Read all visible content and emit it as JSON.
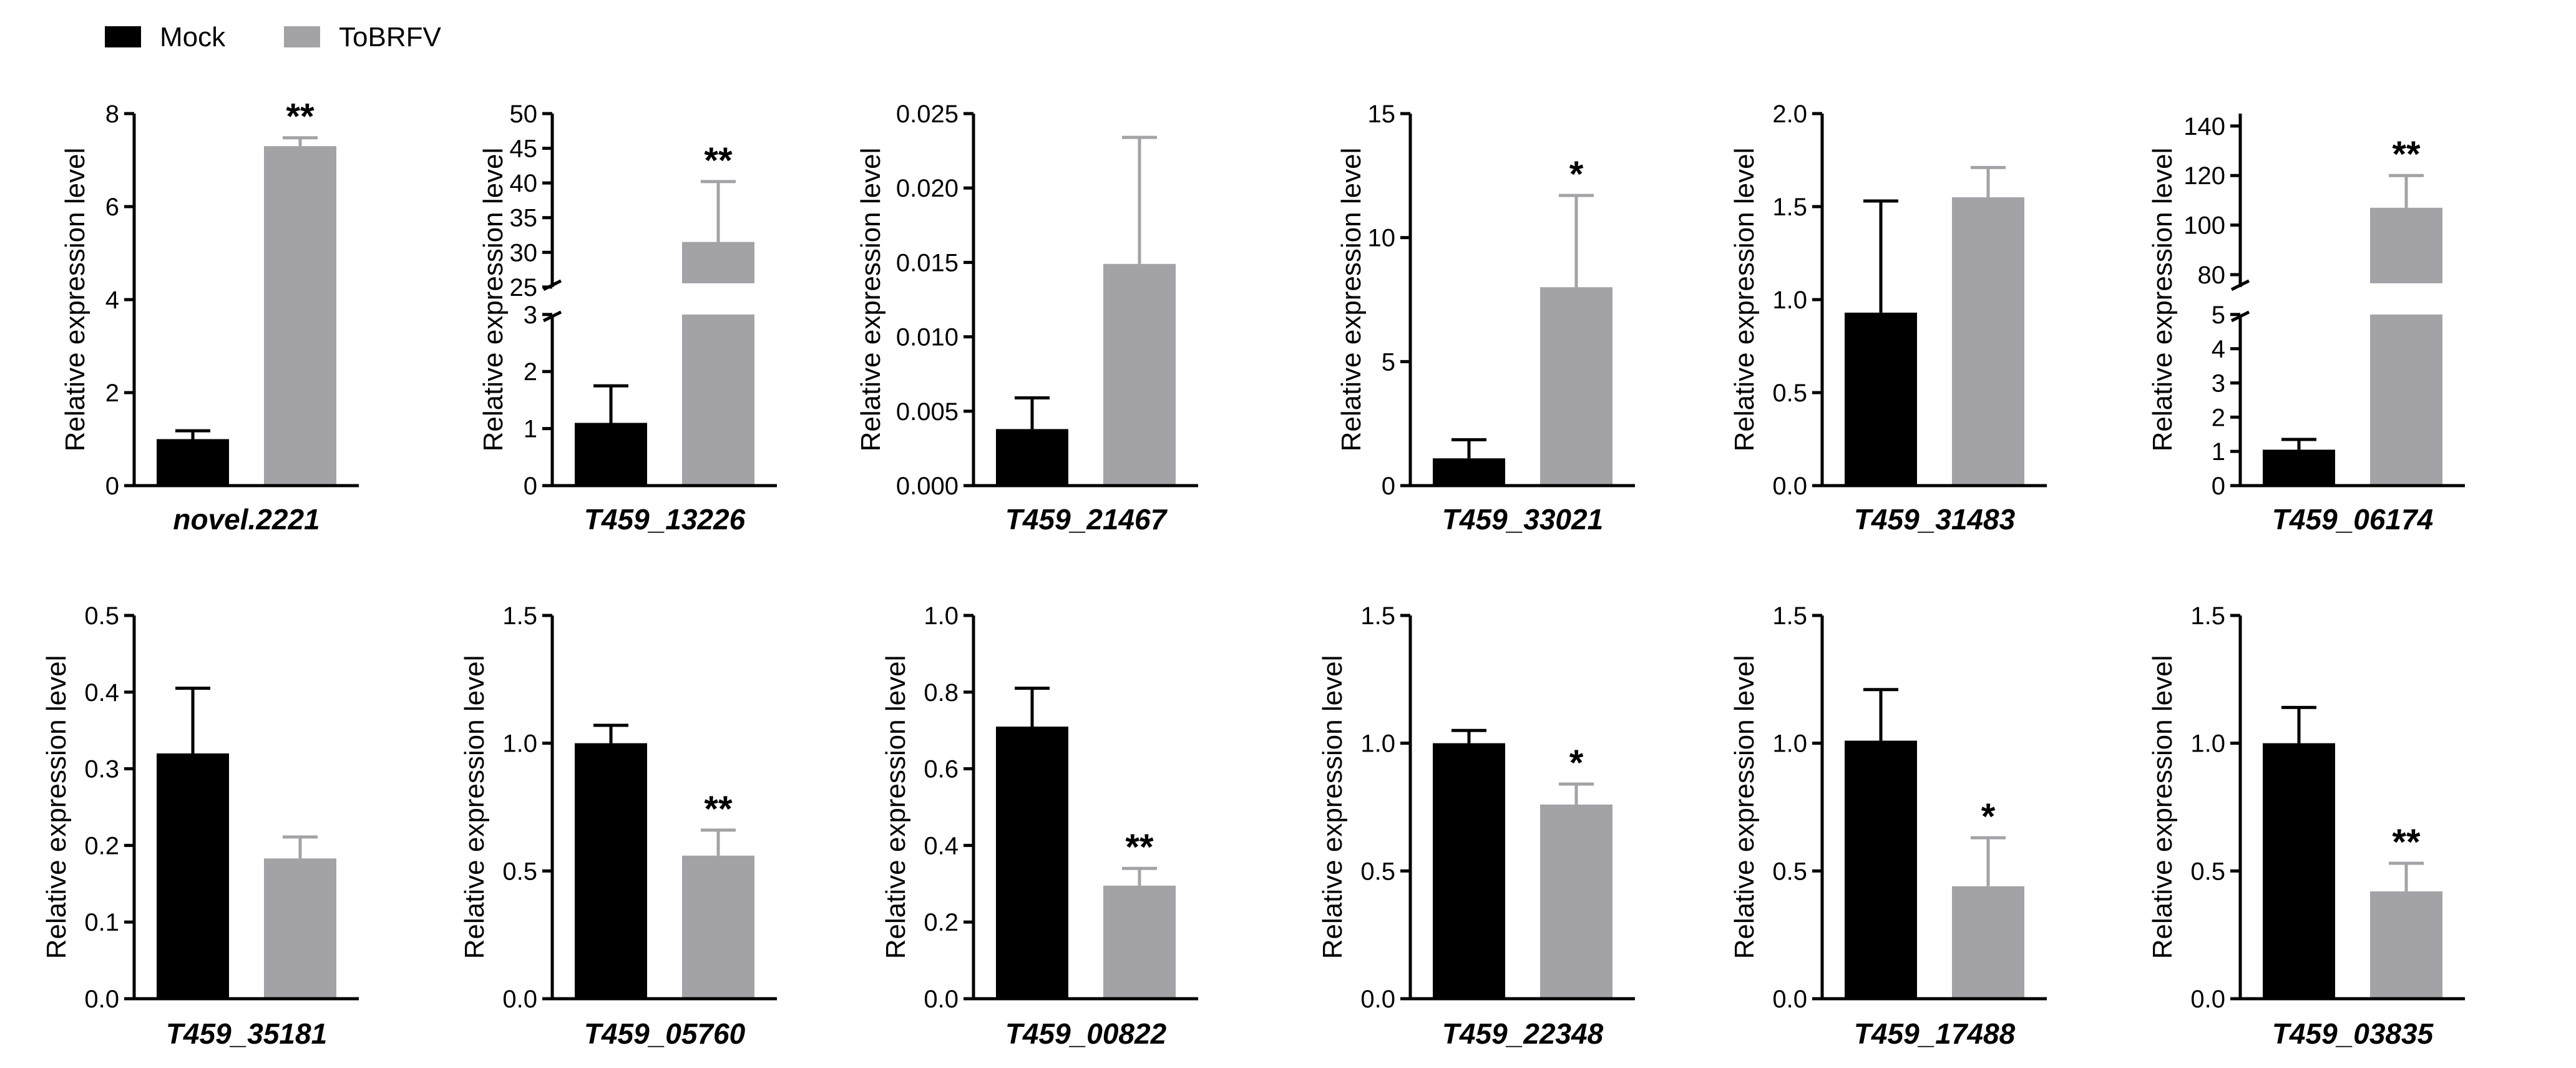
{
  "legend": [
    {
      "label": "Mock",
      "color": "#000000"
    },
    {
      "label": "ToBRFV",
      "color": "#a3a2a7"
    }
  ],
  "chart_data": [
    {
      "type": "bar",
      "title": "novel.2221",
      "ylabel": "Relative expression level",
      "categories": [
        "Mock",
        "ToBRFV"
      ],
      "values": [
        1.0,
        7.3
      ],
      "errors": [
        0.18,
        0.18
      ],
      "significance": "**",
      "ylim": [
        0,
        8
      ],
      "yticks": [
        0,
        2,
        4,
        6,
        8
      ],
      "ytick_labels": [
        "0",
        "2",
        "4",
        "6",
        "8"
      ]
    },
    {
      "type": "bar",
      "title": "T459_13226",
      "ylabel": "Relative expression level",
      "categories": [
        "Mock",
        "ToBRFV"
      ],
      "values": [
        1.1,
        31.5
      ],
      "errors": [
        0.65,
        8.7
      ],
      "significance": "**",
      "ylim": [
        0,
        50
      ],
      "axis_break": {
        "lower": [
          0,
          3
        ],
        "upper": [
          25,
          50
        ]
      },
      "yticks": [
        0,
        1,
        2,
        3,
        25,
        30,
        35,
        40,
        45,
        50
      ],
      "ytick_labels": [
        "0",
        "1",
        "2",
        "3",
        "25",
        "30",
        "35",
        "40",
        "45",
        "50"
      ]
    },
    {
      "type": "bar",
      "title": "T459_21467",
      "ylabel": "Relative expression level",
      "categories": [
        "Mock",
        "ToBRFV"
      ],
      "values": [
        0.0038,
        0.0149
      ],
      "errors": [
        0.0021,
        0.0085
      ],
      "significance": "",
      "ylim": [
        0,
        0.025
      ],
      "yticks": [
        0,
        0.005,
        0.01,
        0.015,
        0.02,
        0.025
      ],
      "ytick_labels": [
        "0.000",
        "0.005",
        "0.010",
        "0.015",
        "0.020",
        "0.025"
      ]
    },
    {
      "type": "bar",
      "title": "T459_33021",
      "ylabel": "Relative expression level",
      "categories": [
        "Mock",
        "ToBRFV"
      ],
      "values": [
        1.1,
        8.0
      ],
      "errors": [
        0.75,
        3.7
      ],
      "significance": "*",
      "ylim": [
        0,
        15
      ],
      "yticks": [
        0,
        5,
        10,
        15
      ],
      "ytick_labels": [
        "0",
        "5",
        "10",
        "15"
      ]
    },
    {
      "type": "bar",
      "title": "T459_31483",
      "ylabel": "Relative expression level",
      "categories": [
        "Mock",
        "ToBRFV"
      ],
      "values": [
        0.93,
        1.55
      ],
      "errors": [
        0.6,
        0.16
      ],
      "significance": "",
      "ylim": [
        0,
        2
      ],
      "yticks": [
        0,
        0.5,
        1,
        1.5,
        2
      ],
      "ytick_labels": [
        "0.0",
        "0.5",
        "1.0",
        "1.5",
        "2.0"
      ]
    },
    {
      "type": "bar",
      "title": "T459_06174",
      "ylabel": "Relative expression level",
      "categories": [
        "Mock",
        "ToBRFV"
      ],
      "values": [
        1.05,
        107
      ],
      "errors": [
        0.3,
        13
      ],
      "significance": "**",
      "ylim": [
        0,
        145
      ],
      "axis_break": {
        "lower": [
          0,
          5
        ],
        "upper": [
          75,
          145
        ]
      },
      "yticks": [
        0,
        1,
        2,
        3,
        4,
        5,
        80,
        100,
        120,
        140
      ],
      "ytick_labels": [
        "0",
        "1",
        "2",
        "3",
        "4",
        "5",
        "80",
        "100",
        "120",
        "140"
      ]
    },
    {
      "type": "bar",
      "title": "T459_35181",
      "ylabel": "Relative expression level",
      "categories": [
        "Mock",
        "ToBRFV"
      ],
      "values": [
        0.32,
        0.183
      ],
      "errors": [
        0.085,
        0.028
      ],
      "significance": "",
      "ylim": [
        0,
        0.5
      ],
      "yticks": [
        0,
        0.1,
        0.2,
        0.3,
        0.4,
        0.5
      ],
      "ytick_labels": [
        "0.0",
        "0.1",
        "0.2",
        "0.3",
        "0.4",
        "0.5"
      ]
    },
    {
      "type": "bar",
      "title": "T459_05760",
      "ylabel": "Relative expression level",
      "categories": [
        "Mock",
        "ToBRFV"
      ],
      "values": [
        1.0,
        0.56
      ],
      "errors": [
        0.07,
        0.1
      ],
      "significance": "**",
      "ylim": [
        0,
        1.5
      ],
      "yticks": [
        0,
        0.5,
        1,
        1.5
      ],
      "ytick_labels": [
        "0.0",
        "0.5",
        "1.0",
        "1.5"
      ]
    },
    {
      "type": "bar",
      "title": "T459_00822",
      "ylabel": "Relative expression level",
      "categories": [
        "Mock",
        "ToBRFV"
      ],
      "values": [
        0.71,
        0.295
      ],
      "errors": [
        0.1,
        0.045
      ],
      "significance": "**",
      "ylim": [
        0,
        1
      ],
      "yticks": [
        0,
        0.2,
        0.4,
        0.6,
        0.8,
        1
      ],
      "ytick_labels": [
        "0.0",
        "0.2",
        "0.4",
        "0.6",
        "0.8",
        "1.0"
      ]
    },
    {
      "type": "bar",
      "title": "T459_22348",
      "ylabel": "Relative expression level",
      "categories": [
        "Mock",
        "ToBRFV"
      ],
      "values": [
        1.0,
        0.76
      ],
      "errors": [
        0.05,
        0.08
      ],
      "significance": "*",
      "ylim": [
        0,
        1.5
      ],
      "yticks": [
        0,
        0.5,
        1,
        1.5
      ],
      "ytick_labels": [
        "0.0",
        "0.5",
        "1.0",
        "1.5"
      ]
    },
    {
      "type": "bar",
      "title": "T459_17488",
      "ylabel": "Relative expression level",
      "categories": [
        "Mock",
        "ToBRFV"
      ],
      "values": [
        1.01,
        0.44
      ],
      "errors": [
        0.2,
        0.19
      ],
      "significance": "*",
      "ylim": [
        0,
        1.5
      ],
      "yticks": [
        0,
        0.5,
        1,
        1.5
      ],
      "ytick_labels": [
        "0.0",
        "0.5",
        "1.0",
        "1.5"
      ]
    },
    {
      "type": "bar",
      "title": "T459_03835",
      "ylabel": "Relative expression level",
      "categories": [
        "Mock",
        "ToBRFV"
      ],
      "values": [
        1.0,
        0.42
      ],
      "errors": [
        0.14,
        0.11
      ],
      "significance": "**",
      "ylim": [
        0,
        1.5
      ],
      "yticks": [
        0,
        0.5,
        1,
        1.5
      ],
      "ytick_labels": [
        "0.0",
        "0.5",
        "1.0",
        "1.5"
      ]
    }
  ]
}
